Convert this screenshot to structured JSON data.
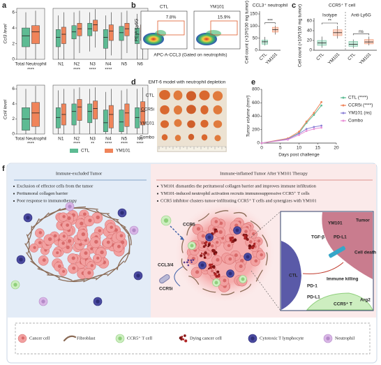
{
  "panel_labels": [
    "a",
    "b",
    "c",
    "d",
    "e",
    "f"
  ],
  "chart_data": [
    {
      "type": "box",
      "ylabel": "Ccl3 level",
      "categories": [
        "Total Neutrophil",
        "N1",
        "N2",
        "N3",
        "N4",
        "N5",
        "N6"
      ],
      "ylim": [
        0,
        6.5
      ],
      "yticks": [
        0,
        2,
        4,
        6
      ],
      "series": [
        {
          "name": "CTL",
          "color": "#5dbb93",
          "q1": [
            1.6,
            1.6,
            2.6,
            3.0,
            1.4,
            2.4,
            2.0
          ],
          "median": [
            3.0,
            2.8,
            3.5,
            3.9,
            2.8,
            3.4,
            3.2
          ],
          "q3": [
            4.0,
            3.8,
            4.3,
            4.6,
            3.8,
            4.2,
            4.0
          ],
          "low": [
            0,
            0,
            0,
            1.0,
            0,
            0,
            0
          ],
          "high": [
            6.0,
            5.6,
            6.0,
            6.0,
            5.6,
            6.0,
            5.8
          ]
        },
        {
          "name": "YM101",
          "color": "#f0845a",
          "q1": [
            2.0,
            2.0,
            3.0,
            3.6,
            2.4,
            3.0,
            2.4
          ],
          "median": [
            3.5,
            3.2,
            3.9,
            4.4,
            3.6,
            3.9,
            3.6
          ],
          "q3": [
            4.3,
            4.1,
            4.6,
            5.0,
            4.4,
            4.6,
            4.4
          ],
          "low": [
            0,
            0,
            0.8,
            1.5,
            0.5,
            0.8,
            0
          ],
          "high": [
            6.2,
            6.0,
            6.2,
            6.4,
            6.0,
            6.2,
            6.0
          ]
        }
      ],
      "stars": [
        "****",
        null,
        "****",
        "****",
        "****",
        null,
        null
      ]
    },
    {
      "type": "box",
      "ylabel": "Ccl4 level",
      "categories": [
        "Total Neutrophil",
        "N1",
        "N2",
        "N3",
        "N4",
        "N5",
        "N6"
      ],
      "ylim": [
        0,
        6.5
      ],
      "yticks": [
        0,
        2,
        4,
        6
      ],
      "legend": true,
      "series": [
        {
          "name": "CTL",
          "color": "#5dbb93",
          "q1": [
            0.5,
            0.8,
            1.2,
            1.5,
            0.3,
            0.3,
            0.8
          ],
          "median": [
            2.0,
            2.2,
            3.0,
            3.0,
            1.5,
            1.6,
            2.2
          ],
          "q3": [
            3.5,
            3.5,
            4.0,
            4.0,
            3.2,
            3.2,
            3.5
          ],
          "low": [
            0,
            0,
            0,
            0,
            0,
            0,
            0
          ],
          "high": [
            6.0,
            5.8,
            6.0,
            6.0,
            5.6,
            5.8,
            6.0
          ]
        },
        {
          "name": "YM101",
          "color": "#f0845a",
          "q1": [
            1.0,
            1.2,
            1.8,
            2.0,
            0.8,
            1.0,
            1.2
          ],
          "median": [
            2.8,
            2.6,
            3.6,
            3.4,
            2.6,
            2.8,
            3.0
          ],
          "q3": [
            4.2,
            4.0,
            4.6,
            4.4,
            3.8,
            4.0,
            4.3
          ],
          "low": [
            0,
            0,
            0,
            0,
            0,
            0,
            0
          ],
          "high": [
            6.4,
            6.0,
            6.2,
            6.2,
            6.0,
            6.0,
            6.2
          ]
        }
      ],
      "stars": [
        "****",
        null,
        "****",
        "**",
        "****",
        "****",
        "****"
      ]
    },
    {
      "type": "box",
      "title": "CCL3⁺ neutrophil",
      "ylabel": "Cell count (×10³/100 mg tumor)",
      "categories": [
        "CTL",
        "YM101"
      ],
      "ylim": [
        0,
        150
      ],
      "yticks": [
        0,
        50,
        100,
        150
      ],
      "series": [
        {
          "color": "#5dbb93",
          "q1": [
            25,
            null
          ],
          "median": [
            35,
            null
          ],
          "q3": [
            42,
            null
          ],
          "low": [
            20,
            null
          ],
          "high": [
            55,
            null
          ]
        },
        {
          "color": "#f0845a",
          "q1": [
            null,
            75
          ],
          "median": [
            null,
            85
          ],
          "q3": [
            null,
            95
          ],
          "low": [
            null,
            65
          ],
          "high": [
            null,
            102
          ]
        }
      ],
      "significance": [
        "***"
      ]
    },
    {
      "type": "box",
      "title": "CCR5⁺ T cell",
      "ylabel": "Cell count (×10³/100 mg tumor)",
      "categories": [
        "CTL",
        "YM101",
        "CTL",
        "YM101"
      ],
      "groups": [
        "Isotype",
        "Anti-Ly6G"
      ],
      "ylim": [
        0,
        60
      ],
      "yticks": [
        0,
        20,
        40,
        60
      ],
      "series": [
        {
          "color": "#5dbb93",
          "q1": [
            10,
            null,
            8,
            null
          ],
          "median": [
            15,
            null,
            12,
            null
          ],
          "q3": [
            20,
            null,
            18,
            null
          ],
          "low": [
            5,
            null,
            4,
            null
          ],
          "high": [
            28,
            null,
            22,
            null
          ]
        },
        {
          "color": "#f0845a",
          "q1": [
            null,
            30,
            null,
            13
          ],
          "median": [
            null,
            36,
            null,
            17
          ],
          "q3": [
            null,
            42,
            null,
            22
          ],
          "low": [
            null,
            24,
            null,
            10
          ],
          "high": [
            null,
            50,
            null,
            28
          ]
        }
      ],
      "significance": [
        "**",
        "ns"
      ]
    },
    {
      "type": "line",
      "ylabel": "Tumor volume (mm³)",
      "xlabel": "Days post challenge",
      "x": [
        0,
        7,
        10,
        12,
        14,
        16
      ],
      "xlim": [
        0,
        20
      ],
      "xticks": [
        0,
        5,
        10,
        15,
        20
      ],
      "ylim": [
        0,
        800
      ],
      "yticks": [
        0,
        200,
        400,
        600,
        800
      ],
      "series": [
        {
          "name": "CTL (****)",
          "color": "#5dbb93",
          "values": [
            0,
            60,
            150,
            300,
            420,
            560
          ]
        },
        {
          "name": "CCR5i (****)",
          "color": "#f0845a",
          "values": [
            0,
            70,
            170,
            320,
            450,
            610
          ]
        },
        {
          "name": "YM101 (ns)",
          "color": "#8a7fd6",
          "values": [
            0,
            60,
            140,
            210,
            240,
            260
          ]
        },
        {
          "name": "Combo",
          "color": "#e88fd6",
          "values": [
            0,
            50,
            120,
            180,
            210,
            230
          ]
        }
      ]
    }
  ],
  "flow": {
    "ylabel": "PE-A-Ly6G",
    "xlabel": "APC-A-CCL3 (Gated on neutrophils)",
    "samples": [
      {
        "name": "CTL",
        "gate": "7.8%"
      },
      {
        "name": "YM101",
        "gate": "15.9%"
      }
    ]
  },
  "tumor_photo": {
    "title": "EMT-6 model with neutrophil depletion",
    "rows": [
      "CTL",
      "CCR5i",
      "YM101",
      "Combo"
    ]
  },
  "diagram": {
    "left": {
      "title": "Immune-excluded Tumor",
      "bullets": [
        "Exclusion of effector cells from the tumor",
        "Peritumoral collagen barrier",
        "Poor response to immunotherapy"
      ]
    },
    "right": {
      "title": "Immune-inflamed Tumor After YM101 Therapy",
      "bullets": [
        "YM101 dismantles the peritumoral collagen barrier and improves immune infiltration",
        "YM101-induced neutrophil activation recruits immunosuppressive CCR5⁺ T cells",
        "CCR5 inhibitor clusters tumor-infiltrating CCR5⁺ T cells and synergizes with YM101"
      ]
    },
    "labels": {
      "ccr5": "CCR5",
      "ccl": "CCL3/4",
      "ccr5i": "CCR5i"
    },
    "zoom": {
      "ym101": "YM101",
      "tgf": "TGF-β",
      "pdl1_top": "PD-L1",
      "tumor": "Tumor",
      "death": "Cell death",
      "killing": "Immune killing",
      "ctl": "CTL",
      "pd1": "PD-1",
      "pdl1_bottom": "PD-L1",
      "tcell": "CCR5⁺ T",
      "arg2": "Arg2"
    },
    "legend": [
      "Cancer cell",
      "Fibroblast",
      "CCR5⁺ T cell",
      "Dying cancer cell",
      "Cytotoxic T lymphocyte",
      "Neutrophil"
    ]
  }
}
